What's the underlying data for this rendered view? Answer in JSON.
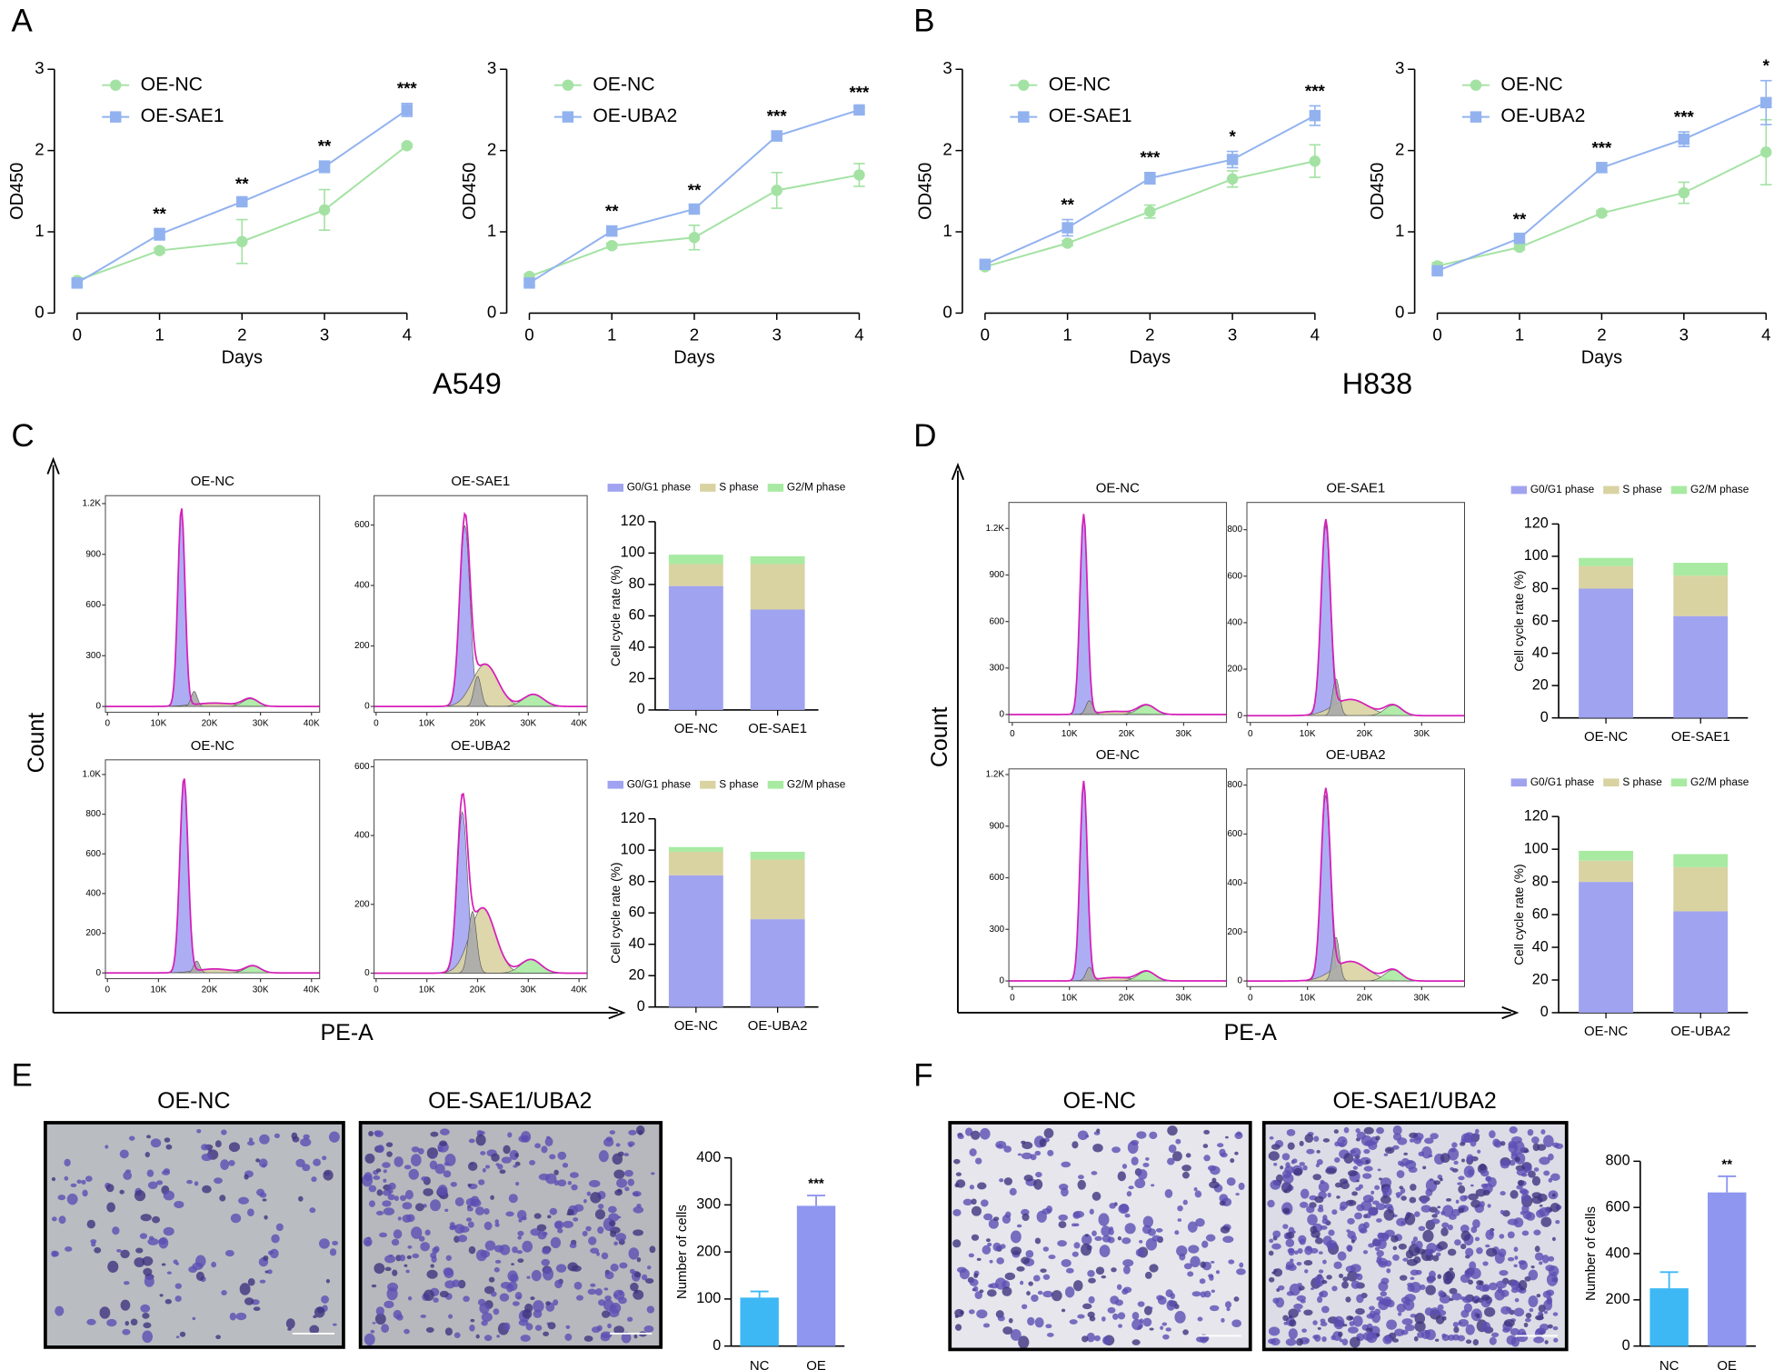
{
  "panel_letters": [
    "A",
    "B",
    "C",
    "D",
    "E",
    "F"
  ],
  "cell_lines": [
    "A549",
    "H838"
  ],
  "flow_axis_titles": {
    "y": "Count",
    "x": "PE-A"
  },
  "transwell_titles": [
    [
      "OE-NC",
      "OE-SAE1/UBA2"
    ],
    [
      "OE-NC",
      "OE-SAE1/UBA2"
    ]
  ],
  "chart_data": [
    {
      "type": "line",
      "x": [
        0,
        1,
        2,
        3,
        4
      ],
      "xlim": [
        0,
        4
      ],
      "xticks": [
        0,
        1,
        2,
        3,
        4
      ],
      "ylim": [
        0,
        3
      ],
      "yticks": [
        0,
        1,
        2,
        3
      ],
      "xlabel": "Days",
      "ylabel": "OD450",
      "series": [
        {
          "name": "OE-NC",
          "color": "#a3e2a3",
          "marker": "circle",
          "values": [
            0.4,
            0.77,
            0.88,
            1.27,
            2.06
          ],
          "errors": [
            0.02,
            0.03,
            0.27,
            0.25,
            0.02
          ]
        },
        {
          "name": "OE-SAE1",
          "color": "#92b2ef",
          "marker": "square",
          "values": [
            0.37,
            0.97,
            1.37,
            1.8,
            2.5
          ],
          "errors": [
            0.03,
            0.07,
            0.04,
            0.07,
            0.08
          ]
        }
      ],
      "annotations": [
        {
          "x": 1,
          "text": "**"
        },
        {
          "x": 2,
          "text": "**"
        },
        {
          "x": 3,
          "text": "**"
        },
        {
          "x": 4,
          "text": "***"
        }
      ]
    },
    {
      "type": "line",
      "x": [
        0,
        1,
        2,
        3,
        4
      ],
      "xlim": [
        0,
        4
      ],
      "xticks": [
        0,
        1,
        2,
        3,
        4
      ],
      "ylim": [
        0,
        3
      ],
      "yticks": [
        0,
        1,
        2,
        3
      ],
      "xlabel": "Days",
      "ylabel": "OD450",
      "series": [
        {
          "name": "OE-NC",
          "color": "#a3e2a3",
          "marker": "circle",
          "values": [
            0.45,
            0.83,
            0.93,
            1.51,
            1.7
          ],
          "errors": [
            0.03,
            0.03,
            0.15,
            0.22,
            0.14
          ]
        },
        {
          "name": "OE-UBA2",
          "color": "#92b2ef",
          "marker": "square",
          "values": [
            0.37,
            1.01,
            1.28,
            2.18,
            2.5
          ],
          "errors": [
            0.03,
            0.06,
            0.05,
            0.06,
            0.03
          ]
        }
      ],
      "annotations": [
        {
          "x": 1,
          "text": "**"
        },
        {
          "x": 2,
          "text": "**"
        },
        {
          "x": 3,
          "text": "***"
        },
        {
          "x": 4,
          "text": "***"
        }
      ]
    },
    {
      "type": "line",
      "x": [
        0,
        1,
        2,
        3,
        4
      ],
      "xlim": [
        0,
        4
      ],
      "xticks": [
        0,
        1,
        2,
        3,
        4
      ],
      "ylim": [
        0,
        3
      ],
      "yticks": [
        0,
        1,
        2,
        3
      ],
      "xlabel": "Days",
      "ylabel": "OD450",
      "series": [
        {
          "name": "OE-NC",
          "color": "#a3e2a3",
          "marker": "circle",
          "values": [
            0.57,
            0.86,
            1.25,
            1.65,
            1.87
          ],
          "errors": [
            0.03,
            0.03,
            0.08,
            0.1,
            0.2
          ]
        },
        {
          "name": "OE-SAE1",
          "color": "#92b2ef",
          "marker": "square",
          "values": [
            0.6,
            1.05,
            1.66,
            1.89,
            2.43
          ],
          "errors": [
            0.03,
            0.1,
            0.07,
            0.1,
            0.12
          ]
        }
      ],
      "annotations": [
        {
          "x": 1,
          "text": "**"
        },
        {
          "x": 2,
          "text": "***"
        },
        {
          "x": 3,
          "text": "*"
        },
        {
          "x": 4,
          "text": "***"
        }
      ]
    },
    {
      "type": "line",
      "x": [
        0,
        1,
        2,
        3,
        4
      ],
      "xlim": [
        0,
        4
      ],
      "xticks": [
        0,
        1,
        2,
        3,
        4
      ],
      "ylim": [
        0,
        3
      ],
      "yticks": [
        0,
        1,
        2,
        3
      ],
      "xlabel": "Days",
      "ylabel": "OD450",
      "series": [
        {
          "name": "OE-NC",
          "color": "#a3e2a3",
          "marker": "circle",
          "values": [
            0.58,
            0.81,
            1.23,
            1.48,
            1.98
          ],
          "errors": [
            0.04,
            0.03,
            0.03,
            0.13,
            0.4
          ]
        },
        {
          "name": "OE-UBA2",
          "color": "#92b2ef",
          "marker": "square",
          "values": [
            0.52,
            0.92,
            1.79,
            2.14,
            2.59
          ],
          "errors": [
            0.03,
            0.05,
            0.06,
            0.09,
            0.27
          ]
        }
      ],
      "annotations": [
        {
          "x": 1,
          "text": "**"
        },
        {
          "x": 2,
          "text": "***"
        },
        {
          "x": 3,
          "text": "***"
        },
        {
          "x": 4,
          "text": "*"
        }
      ]
    },
    {
      "type": "flow",
      "title": "OE-NC",
      "xlim": [
        -400,
        41600
      ],
      "xticks": [
        0,
        {
          "value": 10000,
          "label": "10K"
        },
        {
          "value": 20000,
          "label": "20K"
        },
        {
          "value": 30000,
          "label": "30K"
        },
        {
          "value": 40000,
          "label": "40K"
        }
      ],
      "ylim": [
        -34,
        1247
      ],
      "yticks": [
        0,
        300,
        600,
        900,
        {
          "value": 1200,
          "label": "1.2K"
        }
      ],
      "peaks": [
        {
          "color": "#a4a4f2",
          "x": 14500,
          "height": 1170,
          "width": 700
        },
        {
          "color": "#d9d3a2",
          "x": 21000,
          "height": 20,
          "width": 4000
        },
        {
          "color": "#a8eaa2",
          "x": 28000,
          "height": 45,
          "width": 1500
        },
        {
          "color": "#aaaaaa",
          "x": 17000,
          "height": 90,
          "width": 600
        }
      ]
    },
    {
      "type": "flow",
      "title": "OE-SAE1",
      "xlim": [
        -400,
        41600
      ],
      "xticks": [
        0,
        {
          "value": 10000,
          "label": "10K"
        },
        {
          "value": 20000,
          "label": "20K"
        },
        {
          "value": 30000,
          "label": "30K"
        },
        {
          "value": 40000,
          "label": "40K"
        }
      ],
      "ylim": [
        -19,
        697
      ],
      "yticks": [
        0,
        200,
        400,
        600
      ],
      "peaks": [
        {
          "color": "#a4a4f2",
          "x": 17500,
          "height": 600,
          "width": 1000
        },
        {
          "color": "#d9d3a2",
          "x": 21500,
          "height": 140,
          "width": 2500
        },
        {
          "color": "#a8eaa2",
          "x": 31000,
          "height": 40,
          "width": 2000
        },
        {
          "color": "#aaaaaa",
          "x": 20000,
          "height": 100,
          "width": 700
        }
      ]
    },
    {
      "type": "flow",
      "title": "OE-NC",
      "xlim": [
        -400,
        41600
      ],
      "xticks": [
        0,
        {
          "value": 10000,
          "label": "10K"
        },
        {
          "value": 20000,
          "label": "20K"
        },
        {
          "value": 30000,
          "label": "30K"
        },
        {
          "value": 40000,
          "label": "40K"
        }
      ],
      "ylim": [
        -29,
        1074
      ],
      "yticks": [
        0,
        200,
        400,
        600,
        800,
        {
          "value": 1000,
          "label": "1.0K"
        }
      ],
      "peaks": [
        {
          "color": "#a4a4f2",
          "x": 15000,
          "height": 980,
          "width": 800
        },
        {
          "color": "#d9d3a2",
          "x": 21000,
          "height": 20,
          "width": 3500
        },
        {
          "color": "#a8eaa2",
          "x": 28500,
          "height": 35,
          "width": 1500
        },
        {
          "color": "#aaaaaa",
          "x": 17500,
          "height": 60,
          "width": 600
        }
      ]
    },
    {
      "type": "flow",
      "title": "OE-UBA2",
      "xlim": [
        -400,
        41600
      ],
      "xticks": [
        0,
        {
          "value": 10000,
          "label": "10K"
        },
        {
          "value": 20000,
          "label": "20K"
        },
        {
          "value": 30000,
          "label": "30K"
        },
        {
          "value": 40000,
          "label": "40K"
        }
      ],
      "ylim": [
        -16,
        620
      ],
      "yticks": [
        0,
        200,
        400,
        600
      ],
      "peaks": [
        {
          "color": "#a4a4f2",
          "x": 17000,
          "height": 470,
          "width": 1000
        },
        {
          "color": "#d9d3a2",
          "x": 21000,
          "height": 190,
          "width": 2500
        },
        {
          "color": "#a8eaa2",
          "x": 30500,
          "height": 40,
          "width": 2000
        },
        {
          "color": "#aaaaaa",
          "x": 19000,
          "height": 180,
          "width": 800
        }
      ]
    },
    {
      "type": "flow",
      "title": "OE-NC",
      "xlim": [
        -600,
        37500
      ],
      "xticks": [
        0,
        {
          "value": 10000,
          "label": "10K"
        },
        {
          "value": 20000,
          "label": "20K"
        },
        {
          "value": 30000,
          "label": "30K"
        }
      ],
      "ylim": [
        -51,
        1368
      ],
      "yticks": [
        0,
        300,
        600,
        900,
        {
          "value": 1200,
          "label": "1.2K"
        }
      ],
      "peaks": [
        {
          "color": "#a4a4f2",
          "x": 12500,
          "height": 1290,
          "width": 650
        },
        {
          "color": "#d9d3a2",
          "x": 18000,
          "height": 20,
          "width": 3000
        },
        {
          "color": "#a8eaa2",
          "x": 23500,
          "height": 60,
          "width": 1500
        },
        {
          "color": "#aaaaaa",
          "x": 13500,
          "height": 90,
          "width": 600
        }
      ]
    },
    {
      "type": "flow",
      "title": "OE-SAE1",
      "xlim": [
        -600,
        37500
      ],
      "xticks": [
        0,
        {
          "value": 10000,
          "label": "10K"
        },
        {
          "value": 20000,
          "label": "20K"
        },
        {
          "value": 30000,
          "label": "30K"
        }
      ],
      "ylim": [
        -29,
        917
      ],
      "yticks": [
        0,
        200,
        400,
        600,
        800
      ],
      "peaks": [
        {
          "color": "#a4a4f2",
          "x": 13200,
          "height": 820,
          "width": 800
        },
        {
          "color": "#d9d3a2",
          "x": 17500,
          "height": 70,
          "width": 3000
        },
        {
          "color": "#a8eaa2",
          "x": 25000,
          "height": 45,
          "width": 1500
        },
        {
          "color": "#aaaaaa",
          "x": 15000,
          "height": 160,
          "width": 600
        }
      ]
    },
    {
      "type": "flow",
      "title": "OE-NC",
      "xlim": [
        -600,
        37500
      ],
      "xticks": [
        0,
        {
          "value": 10000,
          "label": "10K"
        },
        {
          "value": 20000,
          "label": "20K"
        },
        {
          "value": 30000,
          "label": "30K"
        }
      ],
      "ylim": [
        -33,
        1233
      ],
      "yticks": [
        0,
        300,
        600,
        900,
        {
          "value": 1200,
          "label": "1.2K"
        }
      ],
      "peaks": [
        {
          "color": "#a4a4f2",
          "x": 12500,
          "height": 1160,
          "width": 650
        },
        {
          "color": "#d9d3a2",
          "x": 18000,
          "height": 20,
          "width": 3000
        },
        {
          "color": "#a8eaa2",
          "x": 23500,
          "height": 55,
          "width": 1500
        },
        {
          "color": "#aaaaaa",
          "x": 13500,
          "height": 80,
          "width": 600
        }
      ]
    },
    {
      "type": "flow",
      "title": "OE-UBA2",
      "xlim": [
        -600,
        37500
      ],
      "xticks": [
        0,
        {
          "value": 10000,
          "label": "10K"
        },
        {
          "value": 20000,
          "label": "20K"
        },
        {
          "value": 30000,
          "label": "30K"
        }
      ],
      "ylim": [
        -23,
        866
      ],
      "yticks": [
        0,
        200,
        400,
        600,
        800
      ],
      "peaks": [
        {
          "color": "#a4a4f2",
          "x": 13200,
          "height": 760,
          "width": 800
        },
        {
          "color": "#d9d3a2",
          "x": 17500,
          "height": 80,
          "width": 3000
        },
        {
          "color": "#a8eaa2",
          "x": 25000,
          "height": 45,
          "width": 1500
        },
        {
          "color": "#aaaaaa",
          "x": 15000,
          "height": 180,
          "width": 600
        }
      ]
    },
    {
      "type": "stacked-bar",
      "categories": [
        "OE-NC",
        "OE-SAE1"
      ],
      "ylim": [
        0,
        120
      ],
      "yticks": [
        0,
        20,
        40,
        60,
        80,
        100,
        120
      ],
      "ylabel": "Cell cycle rate (%)",
      "series": [
        {
          "name": "G0/G1 phase",
          "color": "#a0a3f0",
          "values": [
            79,
            64
          ]
        },
        {
          "name": "S phase",
          "color": "#d9d3a2",
          "values": [
            14,
            29
          ]
        },
        {
          "name": "G2/M phase",
          "color": "#a8eaa2",
          "values": [
            6,
            5
          ]
        }
      ]
    },
    {
      "type": "stacked-bar",
      "categories": [
        "OE-NC",
        "OE-UBA2"
      ],
      "ylim": [
        0,
        120
      ],
      "yticks": [
        0,
        20,
        40,
        60,
        80,
        100,
        120
      ],
      "ylabel": "Cell cycle rate (%)",
      "series": [
        {
          "name": "G0/G1 phase",
          "color": "#a0a3f0",
          "values": [
            84,
            56
          ]
        },
        {
          "name": "S phase",
          "color": "#d9d3a2",
          "values": [
            15,
            38
          ]
        },
        {
          "name": "G2/M phase",
          "color": "#a8eaa2",
          "values": [
            3,
            5
          ]
        }
      ]
    },
    {
      "type": "stacked-bar",
      "categories": [
        "OE-NC",
        "OE-SAE1"
      ],
      "ylim": [
        0,
        120
      ],
      "yticks": [
        0,
        20,
        40,
        60,
        80,
        100,
        120
      ],
      "ylabel": "Cell cycle rate (%)",
      "series": [
        {
          "name": "G0/G1 phase",
          "color": "#a0a3f0",
          "values": [
            80,
            63
          ]
        },
        {
          "name": "S phase",
          "color": "#d9d3a2",
          "values": [
            14,
            25
          ]
        },
        {
          "name": "G2/M phase",
          "color": "#a8eaa2",
          "values": [
            5,
            8
          ]
        }
      ]
    },
    {
      "type": "stacked-bar",
      "categories": [
        "OE-NC",
        "OE-UBA2"
      ],
      "ylim": [
        0,
        120
      ],
      "yticks": [
        0,
        20,
        40,
        60,
        80,
        100,
        120
      ],
      "ylabel": "Cell cycle rate (%)",
      "series": [
        {
          "name": "G0/G1 phase",
          "color": "#a0a3f0",
          "values": [
            80,
            62
          ]
        },
        {
          "name": "S phase",
          "color": "#d9d3a2",
          "values": [
            13,
            27
          ]
        },
        {
          "name": "G2/M phase",
          "color": "#a8eaa2",
          "values": [
            6,
            8
          ]
        }
      ]
    },
    {
      "type": "bar",
      "categories": [
        "NC",
        "OE"
      ],
      "values": [
        103,
        298
      ],
      "errors": [
        13,
        22
      ],
      "colors": [
        "#3db8f5",
        "#8e96ef"
      ],
      "ylim": [
        0,
        400
      ],
      "yticks": [
        0,
        100,
        200,
        300,
        400
      ],
      "ylabel": "Number of cells",
      "annotations": [
        {
          "index": 1,
          "text": "***"
        }
      ]
    },
    {
      "type": "bar",
      "categories": [
        "NC",
        "OE"
      ],
      "values": [
        250,
        665
      ],
      "errors": [
        70,
        70
      ],
      "colors": [
        "#3db8f5",
        "#8e96ef"
      ],
      "ylim": [
        0,
        800
      ],
      "yticks": [
        0,
        200,
        400,
        600,
        800
      ],
      "ylabel": "Number of cells",
      "annotations": [
        {
          "index": 1,
          "text": "**"
        }
      ]
    }
  ]
}
